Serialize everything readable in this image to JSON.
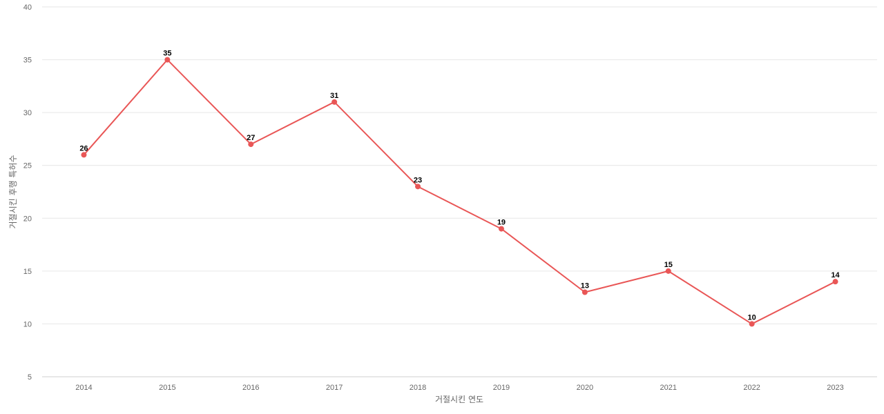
{
  "chart_data": {
    "type": "line",
    "title": "",
    "xlabel": "거절시킨 연도",
    "ylabel": "거절시킨 후행 특허수",
    "categories": [
      "2014",
      "2015",
      "2016",
      "2017",
      "2018",
      "2019",
      "2020",
      "2021",
      "2022",
      "2023"
    ],
    "series": [
      {
        "values": [
          26,
          35,
          27,
          31,
          23,
          19,
          13,
          15,
          10,
          14
        ]
      }
    ],
    "ylim": [
      5,
      40
    ],
    "yticks": [
      "5",
      "10",
      "15",
      "20",
      "25",
      "30",
      "35",
      "40"
    ],
    "grid": true,
    "legend": "none",
    "data_labels": true,
    "colors": {
      "line": "#e95656",
      "grid": "#e6e6e6",
      "tick_text": "#666666",
      "data_label_text": "#000000"
    }
  }
}
